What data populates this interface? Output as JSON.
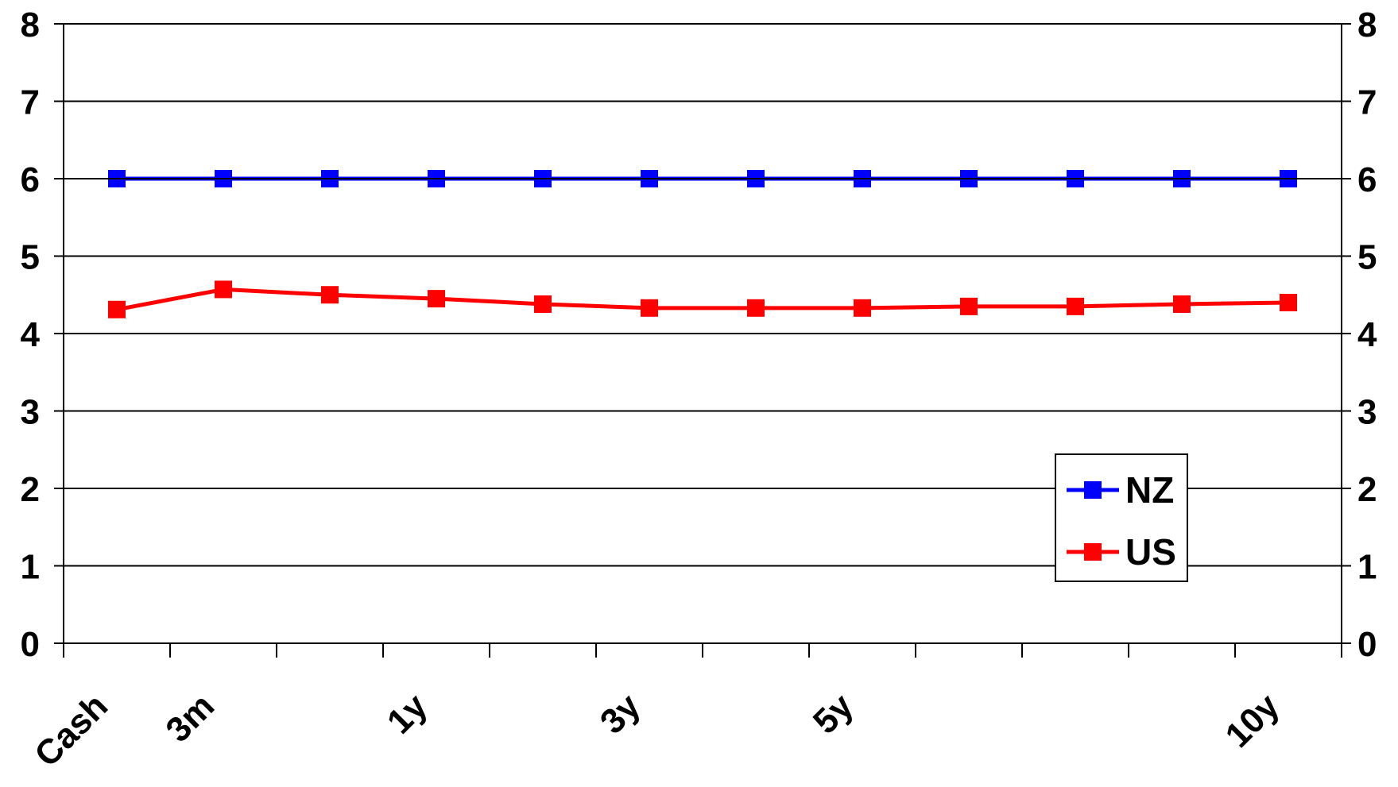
{
  "chart_data": {
    "type": "line",
    "categories": [
      "Cash",
      "3m",
      "",
      "1y",
      "",
      "3y",
      "",
      "5y",
      "",
      "",
      "",
      "10y"
    ],
    "yticks": [
      "0",
      "1",
      "2",
      "3",
      "4",
      "5",
      "6",
      "7",
      "8"
    ],
    "ylim": [
      0,
      8
    ],
    "secondary_ylim": [
      0,
      8
    ],
    "grid": true,
    "legend_position": "bottom-right",
    "series": [
      {
        "name": "NZ",
        "color": "#0000ff",
        "marker": "square",
        "values": [
          6.0,
          6.0,
          6.0,
          6.0,
          6.0,
          6.0,
          6.0,
          6.0,
          6.0,
          6.0,
          6.0,
          6.0
        ]
      },
      {
        "name": "US",
        "color": "#ff0000",
        "marker": "square",
        "values": [
          4.31,
          4.57,
          4.5,
          4.45,
          4.38,
          4.33,
          4.33,
          4.33,
          4.35,
          4.35,
          4.38,
          4.4
        ]
      }
    ]
  }
}
